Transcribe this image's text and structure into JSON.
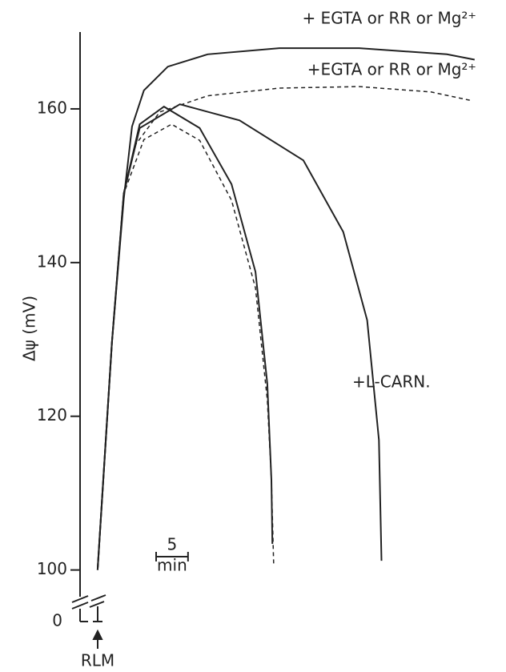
{
  "chart_data": {
    "type": "line",
    "y_label": "Δψ (mV)",
    "ylim": [
      96,
      170
    ],
    "yticks": [
      100,
      120,
      140,
      160
    ],
    "xlim": [
      -2.75,
      60
    ],
    "axis_break_label": "0",
    "addition_label": "RLM",
    "scale_bar": {
      "length": 5,
      "label": "5",
      "unit": "min"
    },
    "series": [
      {
        "name": "+ EGTA or RR or Mg²⁺",
        "color": "#222",
        "dashed": false,
        "x": [
          0,
          2.25,
          4.1,
          5.4,
          7.25,
          11,
          17.25,
          28.5,
          41,
          54.75,
          59.1
        ],
        "values": [
          100,
          129.6,
          148.3,
          157.7,
          162.4,
          165.5,
          167.1,
          167.9,
          167.9,
          167.1,
          166.4
        ]
      },
      {
        "name": "+EGTA or RR or Mg²⁺",
        "color": "#222",
        "dashed": true,
        "x": [
          0,
          2.25,
          4.1,
          6,
          9.75,
          17.25,
          28.5,
          41,
          52.25,
          58.5
        ],
        "values": [
          100,
          129.6,
          149,
          155.4,
          159.6,
          161.7,
          162.7,
          162.9,
          162.2,
          161.1
        ]
      },
      {
        "color": "#222",
        "dashed": false,
        "x": [
          0,
          2.25,
          4.1,
          6.6,
          10.4,
          16,
          21,
          24.75,
          26.6,
          27.25,
          27.4
        ],
        "values": [
          100,
          129.6,
          149,
          158,
          160.3,
          157.5,
          150.2,
          138.8,
          124.2,
          111.7,
          103.4
        ]
      },
      {
        "color": "#222",
        "dashed": true,
        "x": [
          0,
          2.25,
          4.1,
          7.25,
          11.6,
          16,
          21,
          24.75,
          26.6,
          27.25,
          27.6
        ],
        "values": [
          100,
          129.6,
          149,
          156,
          158,
          155.9,
          148.1,
          136.7,
          122.1,
          111.7,
          100.8
        ]
      },
      {
        "name": "+L-CARN.",
        "color": "#222",
        "dashed": false,
        "x": [
          0,
          2.25,
          4.1,
          6.6,
          12.9,
          22.25,
          32.25,
          38.5,
          42.25,
          44.1,
          44.5
        ],
        "values": [
          100,
          129.6,
          149,
          157.5,
          160.6,
          158.5,
          153.3,
          144,
          132.5,
          116.9,
          101.2
        ]
      }
    ]
  }
}
